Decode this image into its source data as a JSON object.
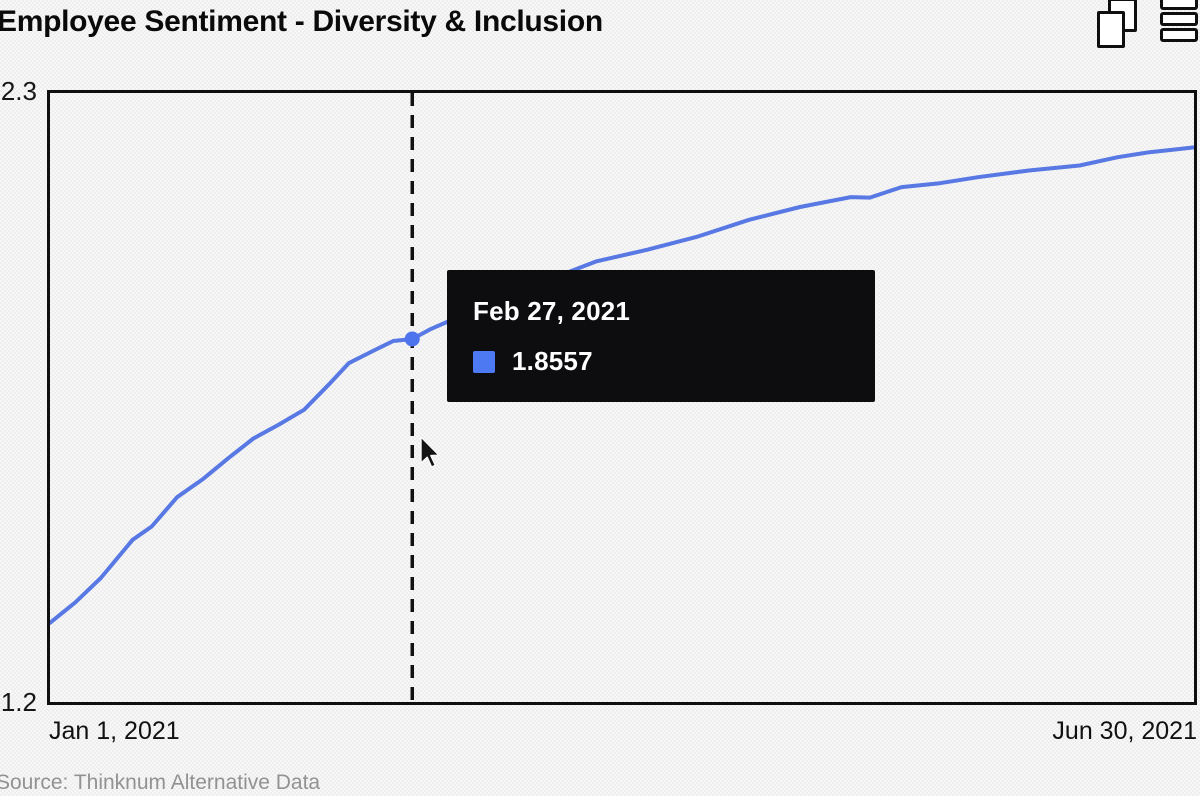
{
  "page": {
    "title": "Employee Sentiment - Diversity & Inclusion",
    "source": "Source: Thinknum Alternative Data"
  },
  "header_icons": {
    "copy": "copy-icon",
    "menu": "menu-icon"
  },
  "axes": {
    "y_max_label": "2.3",
    "y_min_label": "1.2",
    "x_start_label": "Jan 1, 2021",
    "x_end_label": "Jun 30, 2021"
  },
  "tooltip": {
    "date": "Feb 27, 2021",
    "value": "1.8557",
    "swatch_color": "#4d7af2",
    "background": "#0d0d10"
  },
  "colors": {
    "line": "#5878e4",
    "marker": "#4d74ec",
    "guideline": "#111111",
    "plot_border": "#0f0f0f",
    "background": "#f7f7f7"
  },
  "chart_data": {
    "type": "line",
    "title": "Employee Sentiment - Diversity & Inclusion",
    "xlabel": "",
    "ylabel": "",
    "x_ticks": [
      "Jan 1, 2021",
      "Jun 30, 2021"
    ],
    "y_ticks": [
      1.2,
      2.3
    ],
    "x_range": {
      "start": "Jan 1, 2021",
      "end": "Jun 30, 2021",
      "days": 180
    },
    "y_range": {
      "min": 1.2,
      "max": 2.3
    },
    "grid": false,
    "legend": "none (hover tooltip only)",
    "highlight": {
      "date": "Feb 27, 2021",
      "day": 57,
      "value": 1.8557
    },
    "series": [
      {
        "name": "Employee Sentiment - Diversity & Inclusion",
        "color": "#5878e4",
        "points": [
          {
            "day": 0,
            "date": "Jan 1, 2021",
            "value": 1.343
          },
          {
            "day": 4,
            "date": "Jan 5, 2021",
            "value": 1.38
          },
          {
            "day": 8,
            "date": "Jan 9, 2021",
            "value": 1.424
          },
          {
            "day": 13,
            "date": "Jan 14, 2021",
            "value": 1.493
          },
          {
            "day": 16,
            "date": "Jan 17, 2021",
            "value": 1.517
          },
          {
            "day": 20,
            "date": "Jan 21, 2021",
            "value": 1.57
          },
          {
            "day": 24,
            "date": "Jan 25, 2021",
            "value": 1.602
          },
          {
            "day": 28,
            "date": "Jan 29, 2021",
            "value": 1.64
          },
          {
            "day": 32,
            "date": "Feb 2, 2021",
            "value": 1.676
          },
          {
            "day": 36,
            "date": "Feb 6, 2021",
            "value": 1.701
          },
          {
            "day": 40,
            "date": "Feb 10, 2021",
            "value": 1.728
          },
          {
            "day": 44,
            "date": "Feb 14, 2021",
            "value": 1.775
          },
          {
            "day": 47,
            "date": "Feb 17, 2021",
            "value": 1.812
          },
          {
            "day": 51,
            "date": "Feb 21, 2021",
            "value": 1.835
          },
          {
            "day": 54,
            "date": "Feb 24, 2021",
            "value": 1.852
          },
          {
            "day": 57,
            "date": "Feb 27, 2021",
            "value": 1.8557
          },
          {
            "day": 60,
            "date": "Mar 2, 2021",
            "value": 1.874
          },
          {
            "day": 63,
            "date": "Mar 5, 2021",
            "value": 1.889
          },
          {
            "day": 71,
            "date": "Mar 13, 2021",
            "value": 1.93
          },
          {
            "day": 76,
            "date": "Mar 18, 2021",
            "value": 1.955
          },
          {
            "day": 81,
            "date": "Mar 23, 2021",
            "value": 1.974
          },
          {
            "day": 86,
            "date": "Mar 28, 2021",
            "value": 1.996
          },
          {
            "day": 94,
            "date": "Apr 5, 2021",
            "value": 2.017
          },
          {
            "day": 102,
            "date": "Apr 13, 2021",
            "value": 2.041
          },
          {
            "day": 110,
            "date": "Apr 21, 2021",
            "value": 2.071
          },
          {
            "day": 118,
            "date": "Apr 29, 2021",
            "value": 2.094
          },
          {
            "day": 126,
            "date": "May 7, 2021",
            "value": 2.112
          },
          {
            "day": 129,
            "date": "May 10, 2021",
            "value": 2.111
          },
          {
            "day": 134,
            "date": "May 15, 2021",
            "value": 2.13
          },
          {
            "day": 140,
            "date": "May 21, 2021",
            "value": 2.137
          },
          {
            "day": 146,
            "date": "May 27, 2021",
            "value": 2.148
          },
          {
            "day": 154,
            "date": "Jun 4, 2021",
            "value": 2.16
          },
          {
            "day": 162,
            "date": "Jun 12, 2021",
            "value": 2.169
          },
          {
            "day": 168,
            "date": "Jun 18, 2021",
            "value": 2.184
          },
          {
            "day": 173,
            "date": "Jun 23, 2021",
            "value": 2.193
          },
          {
            "day": 177,
            "date": "Jun 27, 2021",
            "value": 2.198
          },
          {
            "day": 180,
            "date": "Jun 30, 2021",
            "value": 2.202
          }
        ]
      }
    ]
  }
}
